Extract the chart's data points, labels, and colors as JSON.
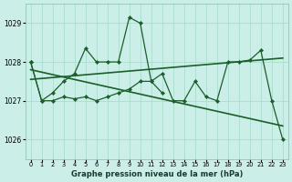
{
  "title": "Graphe pression niveau de la mer (hPa)",
  "bg_color": "#cceee8",
  "grid_color": "#aaddcc",
  "line_color": "#1a5e2a",
  "ylim": [
    1025.5,
    1029.5
  ],
  "yticks": [
    1026,
    1027,
    1028,
    1029
  ],
  "xlim": [
    -0.5,
    23.5
  ],
  "xticks": [
    0,
    1,
    2,
    3,
    4,
    5,
    6,
    7,
    8,
    9,
    10,
    11,
    12,
    13,
    14,
    15,
    16,
    17,
    18,
    19,
    20,
    21,
    22,
    23
  ],
  "series_upper": [
    1028.0,
    1027.0,
    1027.2,
    1027.5,
    1027.7,
    1028.35,
    1028.0,
    1028.0,
    1028.0,
    1029.15,
    1029.0,
    1027.5,
    1027.2
  ],
  "series_lower": [
    1028.0,
    1027.0,
    1027.0,
    1027.1,
    1027.05,
    1027.1,
    1027.0,
    1027.1,
    1027.2,
    1027.3,
    1027.5,
    1027.5,
    1027.7,
    1027.0,
    1027.0,
    1027.5,
    1027.1,
    1027.0,
    1028.0,
    1028.0,
    1028.05,
    1028.3,
    1027.0,
    1026.0
  ],
  "trend_down": {
    "x": [
      0,
      23
    ],
    "y": [
      1027.8,
      1026.35
    ]
  },
  "trend_up": {
    "x": [
      0,
      23
    ],
    "y": [
      1027.55,
      1028.1
    ]
  }
}
